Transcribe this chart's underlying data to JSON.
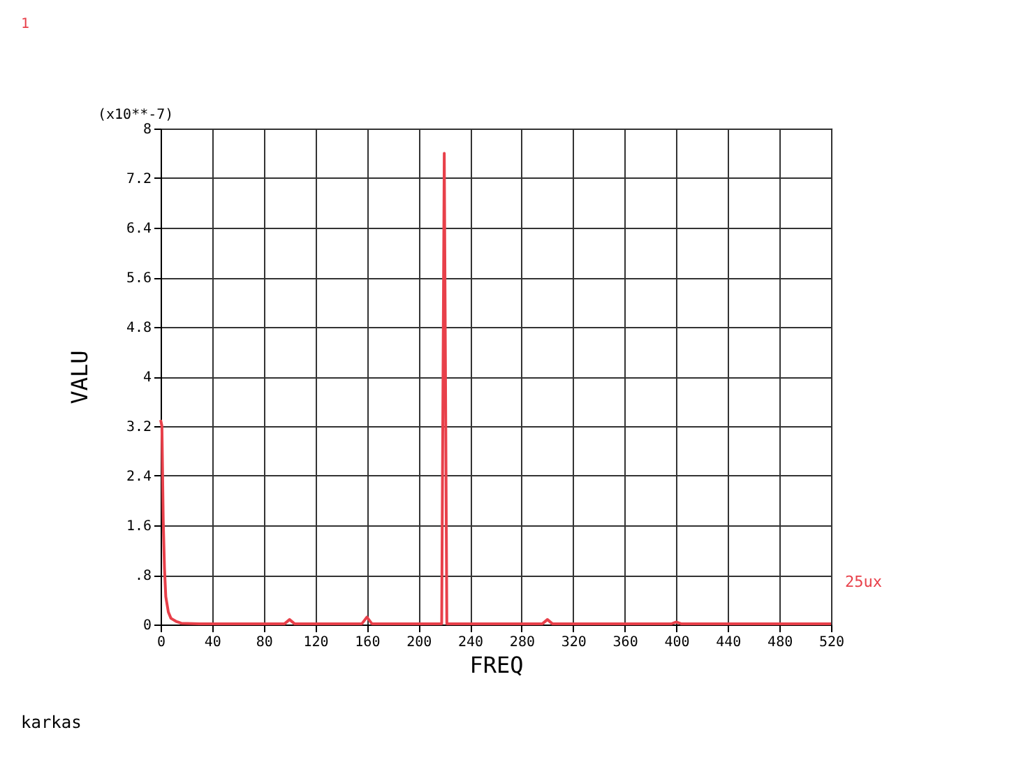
{
  "chart_data": {
    "type": "line",
    "xlabel": "FREQ",
    "ylabel": "VALU",
    "annotations": [
      "1",
      "(x10**-7)",
      "karkas"
    ],
    "series": [
      {
        "name": "25ux",
        "color": "#e8404a",
        "x": [
          0,
          1,
          2,
          3,
          4,
          6,
          8,
          12,
          16,
          30,
          60,
          90,
          96,
          100,
          104,
          150,
          156,
          160,
          164,
          200,
          216,
          218,
          220,
          222,
          224,
          260,
          296,
          300,
          304,
          340,
          396,
          400,
          404,
          440,
          520
        ],
        "values": [
          3.3,
          3.2,
          1.7,
          0.9,
          0.45,
          0.2,
          0.1,
          0.05,
          0.02,
          0.01,
          0.01,
          0.01,
          0.01,
          0.08,
          0.01,
          0.01,
          0.01,
          0.12,
          0.01,
          0.01,
          0.01,
          0.01,
          7.6,
          0.01,
          0.01,
          0.01,
          0.01,
          0.08,
          0.01,
          0.01,
          0.01,
          0.04,
          0.01,
          0.01,
          0.01
        ]
      }
    ],
    "xlim": [
      0,
      520
    ],
    "xticks": [
      0,
      40,
      80,
      120,
      160,
      200,
      240,
      280,
      320,
      360,
      400,
      440,
      480,
      520
    ],
    "ylim": [
      0,
      8
    ],
    "yticks": [
      0,
      {
        "value": 0.8,
        "label": ".8"
      },
      1.6,
      2.4,
      3.2,
      4,
      4.8,
      5.6,
      6.4,
      7.2,
      8
    ],
    "grid": true,
    "marker": "none",
    "line_style": "solid"
  }
}
